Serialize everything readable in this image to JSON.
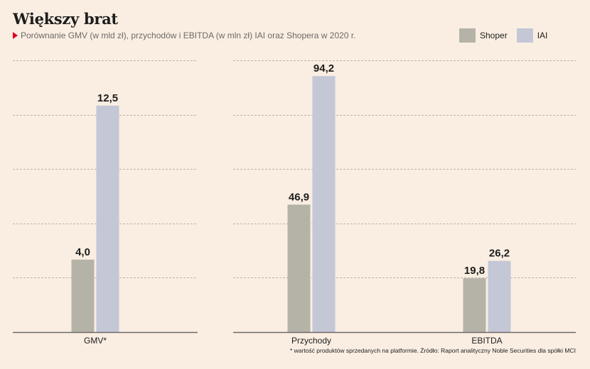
{
  "title": "Większy brat",
  "subtitle": "Porównanie GMV (w mld zł), przychodów i EBITDA (w mln zł) IAI oraz Shopera w 2020 r.",
  "legend": [
    {
      "name": "Shoper",
      "color": "#b5b3a8"
    },
    {
      "name": "IAI",
      "color": "#c3c7d6"
    }
  ],
  "footnote": "* wartość produktów sprzedanych na platformie. Źródło: Raport analityczny Noble Securities dla spółki MCI",
  "colors": {
    "background": "#faeee3",
    "shoper": "#b5b3a8",
    "iai": "#c3c7d6",
    "grid": "#b9b3ac",
    "axis": "#6e6a66"
  },
  "chart_data": [
    {
      "type": "bar",
      "categories": [
        "GMV*"
      ],
      "series": [
        {
          "name": "Shoper",
          "values": [
            4.0
          ],
          "labels": [
            "4,0"
          ]
        },
        {
          "name": "IAI",
          "values": [
            12.5
          ],
          "labels": [
            "12,5"
          ]
        }
      ],
      "ylim": [
        0,
        15
      ],
      "grid": true
    },
    {
      "type": "bar",
      "categories": [
        "Przychody",
        "EBITDA"
      ],
      "series": [
        {
          "name": "Shoper",
          "values": [
            46.9,
            19.8
          ],
          "labels": [
            "46,9",
            "19,8"
          ]
        },
        {
          "name": "IAI",
          "values": [
            94.2,
            26.2
          ],
          "labels": [
            "94,2",
            "26,2"
          ]
        }
      ],
      "ylim": [
        0,
        100
      ],
      "grid": true
    }
  ]
}
